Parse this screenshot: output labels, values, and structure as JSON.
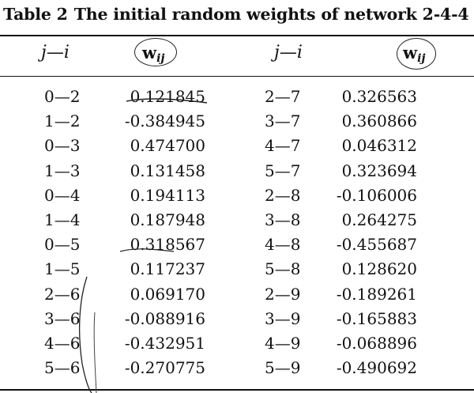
{
  "caption": {
    "label": "Table 2",
    "title": "The initial random weights of network 2-4-4"
  },
  "headers": {
    "col1": "j—i",
    "col2_main": "w",
    "col2_sub": "ij",
    "col3": "j—i",
    "col4_main": "w",
    "col4_sub": "ij"
  },
  "rows": [
    {
      "ji1": "0—2",
      "w1": "0.121845",
      "ji2": "2—7",
      "w2": "0.326563"
    },
    {
      "ji1": "1—2",
      "w1": "-0.384945",
      "ji2": "3—7",
      "w2": "0.360866"
    },
    {
      "ji1": "0—3",
      "w1": "0.474700",
      "ji2": "4—7",
      "w2": "0.046312"
    },
    {
      "ji1": "1—3",
      "w1": "0.131458",
      "ji2": "5—7",
      "w2": "0.323694"
    },
    {
      "ji1": "0—4",
      "w1": "0.194113",
      "ji2": "2—8",
      "w2": "-0.106006"
    },
    {
      "ji1": "1—4",
      "w1": "0.187948",
      "ji2": "3—8",
      "w2": "0.264275"
    },
    {
      "ji1": "0—5",
      "w1": "0.318567",
      "ji2": "4—8",
      "w2": "-0.455687"
    },
    {
      "ji1": "1—5",
      "w1": "0.117237",
      "ji2": "5—8",
      "w2": "0.128620"
    },
    {
      "ji1": "2—6",
      "w1": "0.069170",
      "ji2": "2—9",
      "w2": "-0.189261"
    },
    {
      "ji1": "3—6",
      "w1": "-0.088916",
      "ji2": "3—9",
      "w2": "-0.165883"
    },
    {
      "ji1": "4—6",
      "w1": "-0.432951",
      "ji2": "4—9",
      "w2": "-0.068896"
    },
    {
      "ji1": "5—6",
      "w1": "-0.270775",
      "ji2": "5—9",
      "w2": "-0.490692"
    }
  ]
}
